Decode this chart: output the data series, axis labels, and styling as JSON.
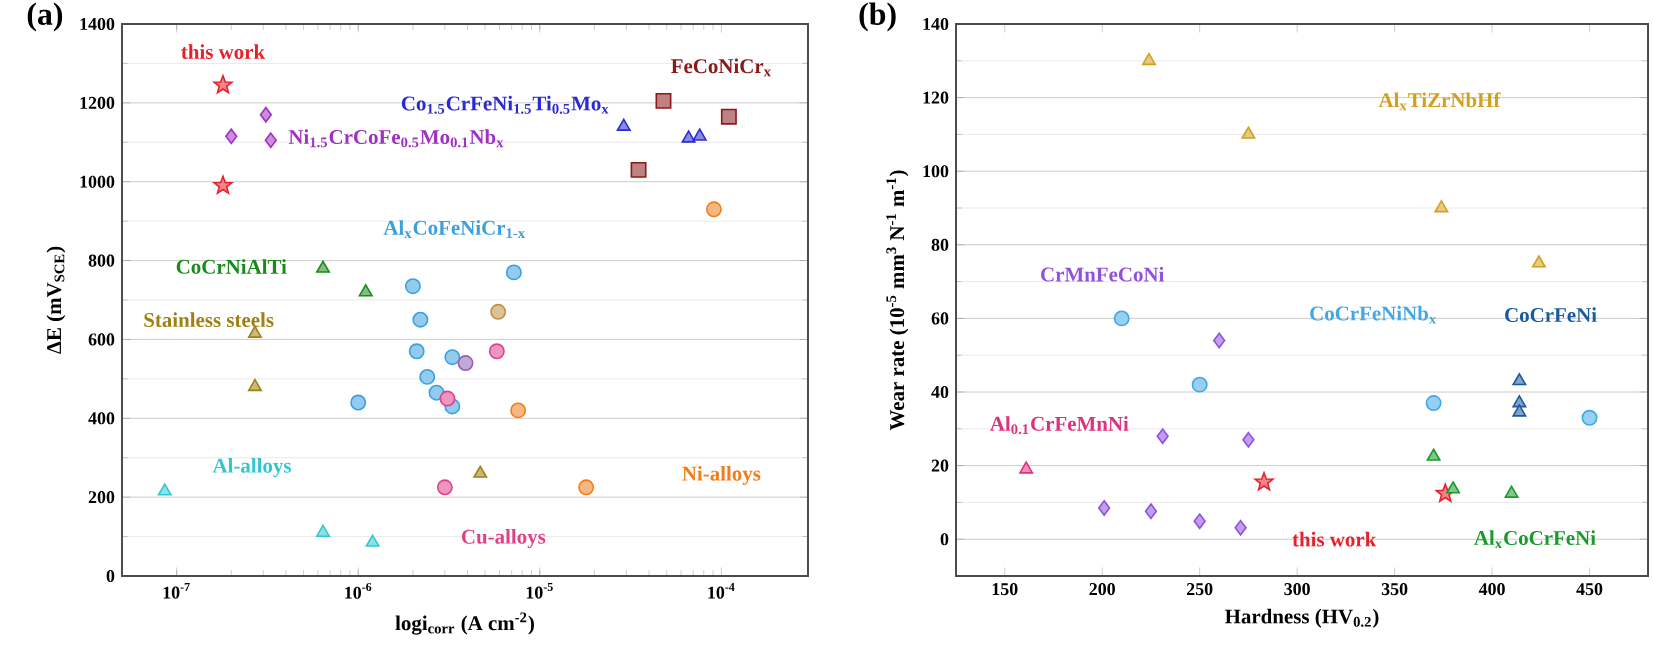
{
  "chart_data": [
    {
      "type": "scatter",
      "title": "(a)",
      "xlabel": "logi$_{corr}$ (A cm$^{-2}$)",
      "ylabel": "ΔE (mV$_{SCE}$)",
      "log": "x",
      "grid": "y",
      "xlim": [
        5e-08,
        0.0003
      ],
      "ylim": [
        0,
        1400
      ],
      "xticks": [
        {
          "value": 1e-07,
          "label": "10$^{-7}$"
        },
        {
          "value": 1e-06,
          "label": "10$^{-6}$"
        },
        {
          "value": 1e-05,
          "label": "10$^{-5}$"
        },
        {
          "value": 0.0001,
          "label": "10$^{-4}$"
        }
      ],
      "yticks": [
        0,
        200,
        400,
        600,
        800,
        1000,
        1200,
        1400
      ],
      "series": [
        {
          "name": "this work",
          "color": "#e8202a",
          "marker": "star",
          "x": [
            1.8e-07,
            1.8e-07
          ],
          "values": [
            1245,
            990
          ]
        },
        {
          "name": "Ni$_{1.5}$CrCoFe$_{0.5}$Mo$_{0.1}$Nb$_{x}$",
          "color": "#a030c0",
          "marker": "diamond",
          "x": [
            3.1e-07,
            2e-07,
            3.3e-07
          ],
          "values": [
            1170,
            1115,
            1105
          ]
        },
        {
          "name": "Co$_{1.5}$CrFeNi$_{1.5}$Ti$_{0.5}$Mo$_{x}$",
          "color": "#2a2ad0",
          "marker": "triangle",
          "x": [
            2.9e-05,
            6.6e-05,
            7.6e-05
          ],
          "values": [
            1140,
            1110,
            1115
          ]
        },
        {
          "name": "FeCoNiCr$_{x}$",
          "color": "#8b1a1a",
          "marker": "square",
          "x": [
            4.8e-05,
            0.00011,
            3.5e-05
          ],
          "values": [
            1205,
            1165,
            1030
          ]
        },
        {
          "name": "Ni-alloys",
          "color": "#f07d1a",
          "marker": "circle",
          "x": [
            9.1e-05,
            7.6e-06,
            1.8e-05
          ],
          "values": [
            930,
            420,
            225
          ]
        },
        {
          "name": "Al$_{x}$CoFeNiCr$_{1-x}$",
          "color": "#3aa0e0",
          "marker": "circle",
          "x": [
            2e-06,
            2.2e-06,
            7.2e-06,
            2.1e-06,
            2.4e-06,
            3.3e-06,
            1e-06,
            2.7e-06,
            3.3e-06
          ],
          "values": [
            735,
            650,
            770,
            570,
            505,
            555,
            440,
            465,
            430
          ]
        },
        {
          "name": "Stainless steels",
          "color": "#a08010",
          "marker": "triangle",
          "x": [
            2.7e-07,
            2.7e-07,
            4.7e-06
          ],
          "values": [
            615,
            480,
            260
          ]
        },
        {
          "name": "Al-alloys",
          "color": "#30c8d0",
          "marker": "triangle",
          "x": [
            8.6e-08,
            6.4e-07,
            1.2e-06
          ],
          "values": [
            215,
            110,
            85
          ]
        },
        {
          "name": "CoCrNiAlTi",
          "color": "#1a8a1a",
          "marker": "triangle",
          "x": [
            6.4e-07,
            1.1e-06
          ],
          "values": [
            780,
            720
          ]
        },
        {
          "name": "Cu-alloys",
          "color": "#e0408a",
          "marker": "circle",
          "x": [
            5.8e-06,
            3.1e-06,
            3e-06
          ],
          "values": [
            570,
            450,
            225
          ]
        },
        {
          "color": "#c09040",
          "marker": "circle",
          "x": [
            5.9e-06
          ],
          "values": [
            670
          ]
        },
        {
          "color": "#9060b0",
          "marker": "circle",
          "x": [
            3.9e-06
          ],
          "values": [
            540
          ]
        }
      ]
    },
    {
      "type": "scatter",
      "title": "(b)",
      "xlabel": "Hardness (HV$_{0.2}$)",
      "ylabel": "Wear rate (10$^{-5}$ mm$^{3}$ N$^{-1}$ m$^{-1}$)",
      "grid": "y",
      "xlim": [
        125,
        480
      ],
      "ylim": [
        -10,
        140
      ],
      "xticks": [
        150,
        200,
        250,
        300,
        350,
        400,
        450
      ],
      "yticks": [
        0,
        20,
        40,
        60,
        80,
        100,
        120,
        140
      ],
      "series": [
        {
          "name": "Al$_{x}$TiZrNbHf",
          "color": "#d0a020",
          "marker": "triangle",
          "x": [
            224,
            275,
            374,
            424
          ],
          "values": [
            130,
            110,
            90,
            75
          ]
        },
        {
          "name": "CrMnFeCoNi",
          "color": "#9050e0",
          "marker": "diamond",
          "x": [
            260,
            231,
            275,
            201,
            225,
            250,
            271
          ],
          "values": [
            54,
            28,
            27,
            8.5,
            7.6,
            4.9,
            3.1
          ]
        },
        {
          "name": "CoCrFeNiNb$_{x}$",
          "color": "#40a8e8",
          "marker": "circle",
          "x": [
            210,
            250,
            370,
            450
          ],
          "values": [
            60,
            42,
            37,
            33
          ]
        },
        {
          "name": "CoCrFeNi",
          "color": "#1a5aa0",
          "marker": "triangle",
          "x": [
            414,
            414,
            414
          ],
          "values": [
            43,
            37,
            34.5
          ]
        },
        {
          "name": "Al$_{0.1}$CrFeMnNi",
          "color": "#e03080",
          "marker": "triangle",
          "x": [
            161
          ],
          "values": [
            19
          ]
        },
        {
          "name": "this work",
          "color": "#e8202a",
          "marker": "star",
          "x": [
            283,
            376
          ],
          "values": [
            15.5,
            12.4
          ]
        },
        {
          "name": "Al$_{x}$CoCrFeNi",
          "color": "#1a9a2a",
          "marker": "triangle",
          "x": [
            370,
            380,
            410
          ],
          "values": [
            22.5,
            13.6,
            12.4
          ]
        }
      ]
    }
  ]
}
